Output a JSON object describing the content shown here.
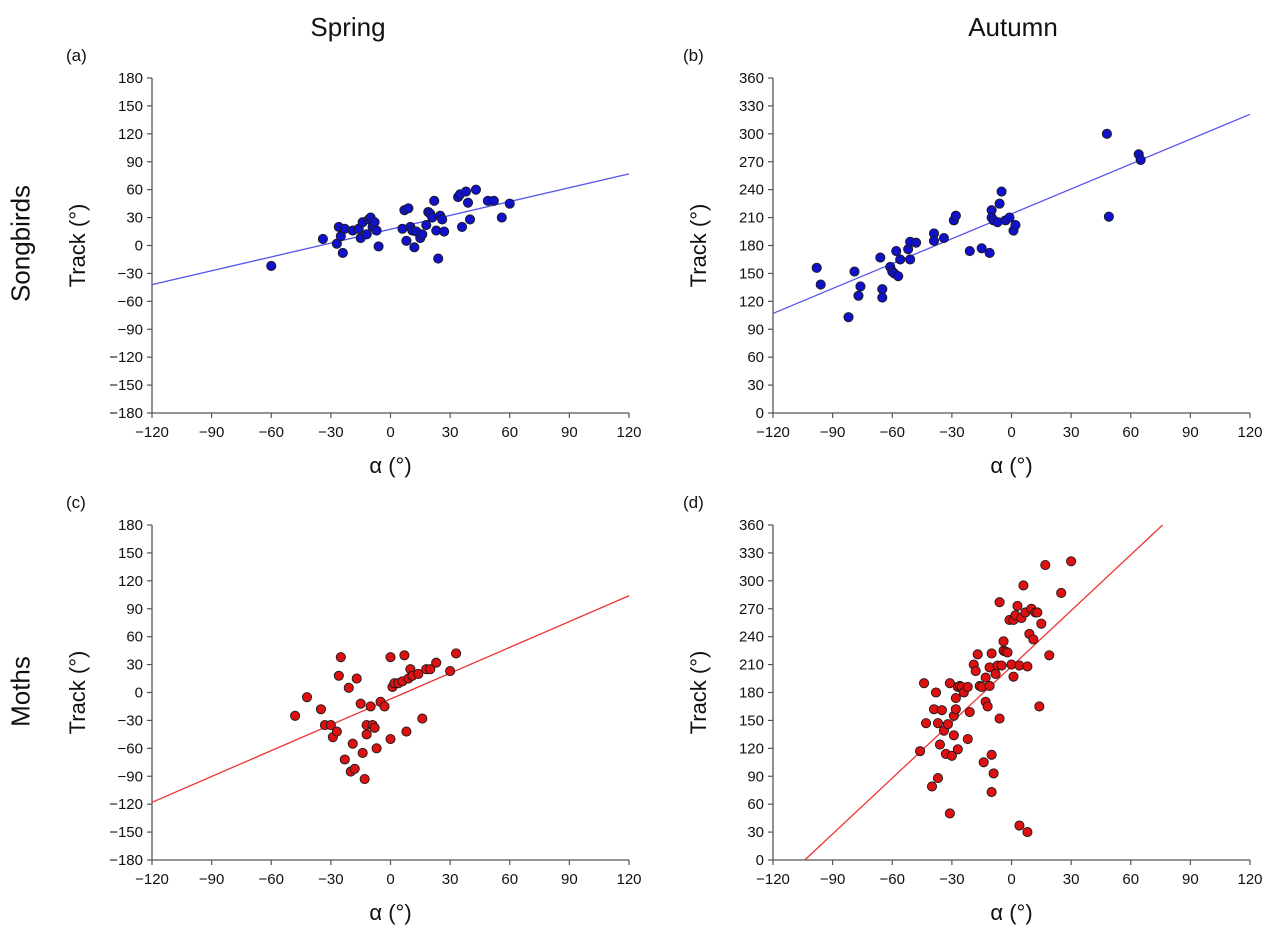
{
  "headers": {
    "col_spring": "Spring",
    "col_autumn": "Autumn",
    "row_songbirds": "Songbirds",
    "row_moths": "Moths"
  },
  "colors": {
    "songbird_fill": "#1111cc",
    "songbird_line": "#5555ee",
    "moth_fill": "#dd1111",
    "moth_line": "#ee3333",
    "axis": "#555555"
  },
  "chart_data": [
    {
      "id": "a",
      "panel_label": "(a)",
      "type": "scatter",
      "xlabel": "α (°)",
      "ylabel": "Track (°)",
      "xlim": [
        -120,
        120
      ],
      "ylim": [
        -180,
        180
      ],
      "xticks": [
        -120,
        -90,
        -60,
        -30,
        0,
        30,
        60,
        90,
        120
      ],
      "yticks": [
        -180,
        -150,
        -120,
        -90,
        -60,
        -30,
        0,
        30,
        60,
        90,
        120,
        150,
        180
      ],
      "series": [
        {
          "group": "songbirds",
          "points": [
            [
              -60,
              -22
            ],
            [
              -34,
              7
            ],
            [
              -27,
              2
            ],
            [
              -26,
              20
            ],
            [
              -25,
              10
            ],
            [
              -24,
              -8
            ],
            [
              -23,
              18
            ],
            [
              -19,
              16
            ],
            [
              -16,
              18
            ],
            [
              -15,
              8
            ],
            [
              -14,
              25
            ],
            [
              -12,
              12
            ],
            [
              -11,
              28
            ],
            [
              -10,
              30
            ],
            [
              -9,
              20
            ],
            [
              -8,
              25
            ],
            [
              -7,
              16
            ],
            [
              -6,
              -1
            ],
            [
              6,
              18
            ],
            [
              7,
              38
            ],
            [
              8,
              5
            ],
            [
              9,
              40
            ],
            [
              10,
              20
            ],
            [
              11,
              16
            ],
            [
              12,
              -2
            ],
            [
              13,
              15
            ],
            [
              15,
              8
            ],
            [
              16,
              12
            ],
            [
              18,
              22
            ],
            [
              19,
              36
            ],
            [
              20,
              34
            ],
            [
              21,
              30
            ],
            [
              22,
              48
            ],
            [
              23,
              16
            ],
            [
              24,
              -14
            ],
            [
              25,
              32
            ],
            [
              26,
              28
            ],
            [
              27,
              15
            ],
            [
              34,
              52
            ],
            [
              35,
              55
            ],
            [
              36,
              20
            ],
            [
              38,
              58
            ],
            [
              39,
              46
            ],
            [
              40,
              28
            ],
            [
              43,
              60
            ],
            [
              49,
              48
            ],
            [
              52,
              48
            ],
            [
              56,
              30
            ],
            [
              60,
              45
            ]
          ]
        }
      ],
      "fit_line": {
        "x": [
          -120,
          120
        ],
        "y": [
          -42,
          77
        ]
      }
    },
    {
      "id": "b",
      "panel_label": "(b)",
      "type": "scatter",
      "xlabel": "α (°)",
      "ylabel": "Track (°)",
      "xlim": [
        -120,
        120
      ],
      "ylim": [
        0,
        360
      ],
      "xticks": [
        -120,
        -90,
        -60,
        -30,
        0,
        30,
        60,
        90,
        120
      ],
      "yticks": [
        0,
        30,
        60,
        90,
        120,
        150,
        180,
        210,
        240,
        270,
        300,
        330,
        360
      ],
      "series": [
        {
          "group": "songbirds",
          "points": [
            [
              -98,
              156
            ],
            [
              -96,
              138
            ],
            [
              -82,
              103
            ],
            [
              -79,
              152
            ],
            [
              -77,
              126
            ],
            [
              -76,
              136
            ],
            [
              -66,
              167
            ],
            [
              -65,
              133
            ],
            [
              -65,
              124
            ],
            [
              -61,
              157
            ],
            [
              -60,
              152
            ],
            [
              -59,
              150
            ],
            [
              -58,
              174
            ],
            [
              -57,
              147
            ],
            [
              -56,
              165
            ],
            [
              -52,
              176
            ],
            [
              -51,
              165
            ],
            [
              -51,
              184
            ],
            [
              -48,
              183
            ],
            [
              -39,
              193
            ],
            [
              -39,
              185
            ],
            [
              -34,
              188
            ],
            [
              -29,
              207
            ],
            [
              -28,
              212
            ],
            [
              -21,
              174
            ],
            [
              -15,
              177
            ],
            [
              -11,
              172
            ],
            [
              -10,
              218
            ],
            [
              -10,
              210
            ],
            [
              -9,
              207
            ],
            [
              -7,
              205
            ],
            [
              -6,
              225
            ],
            [
              -5,
              238
            ],
            [
              -3,
              207
            ],
            [
              -1,
              210
            ],
            [
              1,
              196
            ],
            [
              2,
              202
            ],
            [
              48,
              300
            ],
            [
              49,
              211
            ],
            [
              64,
              278
            ],
            [
              65,
              272
            ]
          ]
        }
      ],
      "fit_line": {
        "x": [
          -120,
          120
        ],
        "y": [
          107,
          321
        ]
      }
    },
    {
      "id": "c",
      "panel_label": "(c)",
      "type": "scatter",
      "xlabel": "α (°)",
      "ylabel": "Track (°)",
      "xlim": [
        -120,
        120
      ],
      "ylim": [
        -180,
        180
      ],
      "xticks": [
        -120,
        -90,
        -60,
        -30,
        0,
        30,
        60,
        90,
        120
      ],
      "yticks": [
        -180,
        -150,
        -120,
        -90,
        -60,
        -30,
        0,
        30,
        60,
        90,
        120,
        150,
        180
      ],
      "series": [
        {
          "group": "moths",
          "points": [
            [
              -48,
              -25
            ],
            [
              -42,
              -5
            ],
            [
              -35,
              -18
            ],
            [
              -33,
              -35
            ],
            [
              -30,
              -35
            ],
            [
              -29,
              -48
            ],
            [
              -27,
              -42
            ],
            [
              -26,
              18
            ],
            [
              -25,
              38
            ],
            [
              -23,
              -72
            ],
            [
              -21,
              5
            ],
            [
              -20,
              -85
            ],
            [
              -19,
              -55
            ],
            [
              -18,
              -82
            ],
            [
              -17,
              15
            ],
            [
              -15,
              -12
            ],
            [
              -14,
              -65
            ],
            [
              -13,
              -93
            ],
            [
              -12,
              -35
            ],
            [
              -12,
              -45
            ],
            [
              -10,
              -15
            ],
            [
              -9,
              -35
            ],
            [
              -8,
              -38
            ],
            [
              -7,
              -60
            ],
            [
              -5,
              -10
            ],
            [
              -3,
              -15
            ],
            [
              0,
              -50
            ],
            [
              0,
              38
            ],
            [
              1,
              6
            ],
            [
              2,
              10
            ],
            [
              4,
              10
            ],
            [
              6,
              12
            ],
            [
              7,
              40
            ],
            [
              8,
              -42
            ],
            [
              9,
              15
            ],
            [
              10,
              25
            ],
            [
              11,
              18
            ],
            [
              14,
              20
            ],
            [
              16,
              -28
            ],
            [
              18,
              25
            ],
            [
              20,
              25
            ],
            [
              23,
              32
            ],
            [
              30,
              23
            ],
            [
              33,
              42
            ]
          ]
        }
      ],
      "fit_line": {
        "x": [
          -120,
          120
        ],
        "y": [
          -118,
          104
        ]
      }
    },
    {
      "id": "d",
      "panel_label": "(d)",
      "type": "scatter",
      "xlabel": "α (°)",
      "ylabel": "Track (°)",
      "xlim": [
        -120,
        120
      ],
      "ylim": [
        0,
        360
      ],
      "xticks": [
        -120,
        -90,
        -60,
        -30,
        0,
        30,
        60,
        90,
        120
      ],
      "yticks": [
        0,
        30,
        60,
        90,
        120,
        150,
        180,
        210,
        240,
        270,
        300,
        330,
        360
      ],
      "series": [
        {
          "group": "moths",
          "points": [
            [
              -46,
              117
            ],
            [
              -44,
              190
            ],
            [
              -43,
              147
            ],
            [
              -40,
              79
            ],
            [
              -39,
              162
            ],
            [
              -38,
              180
            ],
            [
              -37,
              147
            ],
            [
              -37,
              88
            ],
            [
              -36,
              124
            ],
            [
              -35,
              161
            ],
            [
              -34,
              139
            ],
            [
              -33,
              114
            ],
            [
              -32,
              146
            ],
            [
              -31,
              50
            ],
            [
              -31,
              190
            ],
            [
              -30,
              112
            ],
            [
              -29,
              155
            ],
            [
              -29,
              134
            ],
            [
              -28,
              174
            ],
            [
              -28,
              162
            ],
            [
              -27,
              186
            ],
            [
              -27,
              119
            ],
            [
              -26,
              187
            ],
            [
              -25,
              186
            ],
            [
              -24,
              180
            ],
            [
              -22,
              186
            ],
            [
              -22,
              130
            ],
            [
              -21,
              159
            ],
            [
              -19,
              210
            ],
            [
              -18,
              203
            ],
            [
              -17,
              221
            ],
            [
              -16,
              187
            ],
            [
              -15,
              186
            ],
            [
              -14,
              105
            ],
            [
              -13,
              170
            ],
            [
              -13,
              196
            ],
            [
              -12,
              165
            ],
            [
              -11,
              187
            ],
            [
              -11,
              207
            ],
            [
              -10,
              222
            ],
            [
              -10,
              113
            ],
            [
              -10,
              73
            ],
            [
              -9,
              93
            ],
            [
              -8,
              200
            ],
            [
              -7,
              209
            ],
            [
              -6,
              152
            ],
            [
              -6,
              277
            ],
            [
              -5,
              209
            ],
            [
              -4,
              235
            ],
            [
              -4,
              225
            ],
            [
              -3,
              224
            ],
            [
              -2,
              223
            ],
            [
              -1,
              258
            ],
            [
              0,
              210
            ],
            [
              1,
              197
            ],
            [
              1,
              258
            ],
            [
              2,
              263
            ],
            [
              3,
              273
            ],
            [
              4,
              209
            ],
            [
              4,
              37
            ],
            [
              5,
              260
            ],
            [
              6,
              295
            ],
            [
              7,
              266
            ],
            [
              8,
              208
            ],
            [
              8,
              30
            ],
            [
              9,
              243
            ],
            [
              10,
              270
            ],
            [
              11,
              237
            ],
            [
              12,
              266
            ],
            [
              13,
              266
            ],
            [
              14,
              165
            ],
            [
              15,
              254
            ],
            [
              17,
              317
            ],
            [
              19,
              220
            ],
            [
              25,
              287
            ],
            [
              30,
              321
            ]
          ]
        }
      ],
      "fit_line": {
        "x": [
          -104,
          76
        ],
        "y": [
          0,
          360
        ]
      }
    }
  ]
}
